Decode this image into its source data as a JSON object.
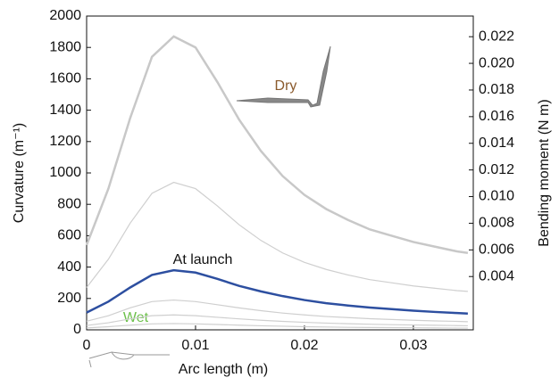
{
  "chart_data": {
    "type": "line",
    "xlabel": "Arc length (m)",
    "ylabel": "Curvature (m⁻¹)",
    "y2label": "Bending moment (N m)",
    "x": [
      0,
      0.002,
      0.004,
      0.006,
      0.008,
      0.01,
      0.012,
      0.014,
      0.016,
      0.018,
      0.02,
      0.022,
      0.024,
      0.026,
      0.028,
      0.03,
      0.032,
      0.034,
      0.035
    ],
    "series": [
      {
        "color": "#c8c8c8",
        "width": 2.5,
        "values": [
          540,
          900,
          1350,
          1740,
          1870,
          1800,
          1580,
          1340,
          1140,
          980,
          860,
          770,
          700,
          640,
          600,
          560,
          530,
          500,
          490
        ]
      },
      {
        "color": "#cfcfcf",
        "width": 1.2,
        "values": [
          270,
          450,
          680,
          870,
          940,
          900,
          790,
          670,
          570,
          490,
          430,
          385,
          350,
          320,
          300,
          280,
          265,
          250,
          245
        ]
      },
      {
        "color": "#2d4fa0",
        "width": 2.5,
        "values": [
          110,
          180,
          270,
          350,
          380,
          365,
          325,
          280,
          245,
          215,
          190,
          170,
          155,
          142,
          132,
          122,
          114,
          107,
          104
        ]
      },
      {
        "color": "#cfcfcf",
        "width": 1.2,
        "values": [
          55,
          90,
          140,
          180,
          190,
          180,
          160,
          140,
          122,
          107,
          95,
          85,
          78,
          71,
          66,
          61,
          57,
          54,
          52
        ]
      },
      {
        "color": "#cfcfcf",
        "width": 1.2,
        "values": [
          28,
          45,
          70,
          90,
          95,
          90,
          80,
          70,
          61,
          54,
          48,
          43,
          39,
          36,
          33,
          31,
          29,
          27,
          26
        ]
      },
      {
        "color": "#cfcfcf",
        "width": 1.2,
        "values": [
          12,
          20,
          30,
          38,
          40,
          38,
          34,
          30,
          26,
          23,
          20,
          18,
          16,
          15,
          14,
          13,
          12,
          11,
          11
        ]
      }
    ],
    "annotations": [
      "Dry",
      "At launch",
      "Wet"
    ],
    "annotation_colors": [
      "#8a5a2c",
      "#111111",
      "#6cc04a"
    ],
    "xlim": [
      0,
      0.0355
    ],
    "xticks": [
      0,
      0.01,
      0.02,
      0.03
    ],
    "ylim": [
      0,
      2000
    ],
    "yticks": [
      0,
      200,
      400,
      600,
      800,
      1000,
      1200,
      1400,
      1600,
      1800,
      2000
    ],
    "y2lim": [
      0,
      0.02355
    ],
    "y2ticks": [
      0.004,
      0.006,
      0.008,
      {
        "value": 0.01,
        "label": "0.010"
      },
      0.012,
      0.014,
      0.016,
      0.018,
      {
        "value": 0.02,
        "label": "0.020"
      },
      0.022
    ]
  }
}
